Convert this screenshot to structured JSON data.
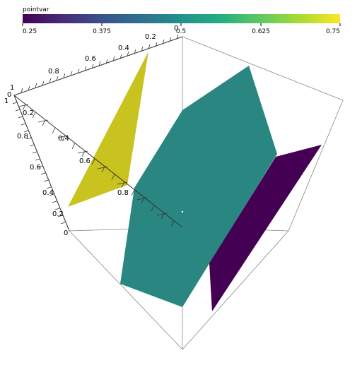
{
  "colorbar": {
    "title": "pointvar",
    "tick_labels": [
      "0.25",
      "0.375",
      "0.5",
      "0.625",
      "0.75"
    ],
    "colors": [
      "#440154",
      "#3b528b",
      "#21918c",
      "#5ec962",
      "#fde725"
    ]
  },
  "axes": {
    "top_axis_labels": [
      "0",
      "0.2",
      "0.4",
      "0.6",
      "0.8",
      "1"
    ],
    "left_axis_labels": [
      "1",
      "0.8",
      "0.6",
      "0.4",
      "0.2",
      "0"
    ],
    "inner_axis_labels": [
      "0",
      "0.2",
      "0.4",
      "0.6",
      "0.8"
    ]
  },
  "surfaces": {
    "yellow_color": "#c9c31f",
    "teal_color": "#2a8681",
    "purple_color": "#440154"
  }
}
